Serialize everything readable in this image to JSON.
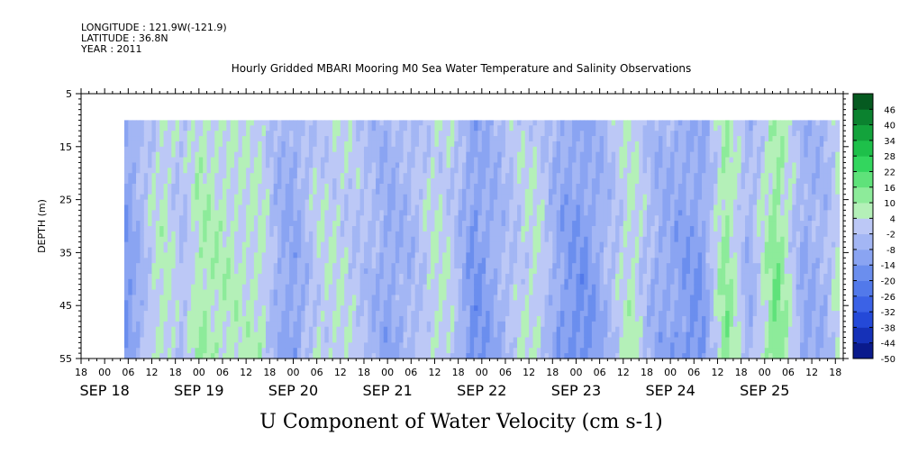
{
  "header": {
    "longitude": "LONGITUDE : 121.9W(-121.9)",
    "latitude": "LATITUDE : 36.8N",
    "year": "YEAR : 2011"
  },
  "chart_data": {
    "type": "heatmap",
    "title": "Hourly Gridded MBARI Mooring M0 Sea Water Temperature and Salinity Observations",
    "xlabel": "U Component of Water Velocity (cm s-1)",
    "ylabel": "DEPTH (m)",
    "x_time_range": [
      "2011-09-17T18:00",
      "2011-09-25T20:00"
    ],
    "data_time_range": [
      "2011-09-18T05:00",
      "2011-09-25T19:00"
    ],
    "hour_tick_labels": [
      "18",
      "00",
      "06",
      "12",
      "18",
      "00",
      "06",
      "12",
      "18",
      "00",
      "06",
      "12",
      "18",
      "00",
      "06",
      "12",
      "18",
      "00",
      "06",
      "12",
      "18",
      "00",
      "06",
      "12",
      "18",
      "00",
      "06",
      "12",
      "18",
      "00",
      "06",
      "12",
      "18"
    ],
    "day_labels": [
      "SEP 18",
      "SEP 19",
      "SEP 20",
      "SEP 21",
      "SEP 22",
      "SEP 23",
      "SEP 24",
      "SEP 25"
    ],
    "ylim": [
      5,
      55
    ],
    "y_inverted": true,
    "y_ticks": [
      5,
      15,
      25,
      35,
      45,
      55
    ],
    "data_depth_range": [
      10,
      55
    ],
    "colorbar": {
      "levels": [
        -50,
        -44,
        -38,
        -32,
        -26,
        -20,
        -14,
        -8,
        -2,
        4,
        10,
        16,
        22,
        28,
        34,
        40,
        46
      ],
      "tick_labels": [
        "-50",
        "-44",
        "-38",
        "-32",
        "-26",
        "-20",
        "-14",
        "-8",
        "-2",
        "4",
        "10",
        "16",
        "22",
        "28",
        "34",
        "40",
        "46"
      ],
      "colors": [
        "#0a1a8c",
        "#1531b8",
        "#2449d8",
        "#3b62e6",
        "#5279ea",
        "#6b8eee",
        "#8aa4f2",
        "#a3b6f4",
        "#bcc8f6",
        "#b4f0b8",
        "#8deb9a",
        "#5fe27a",
        "#33d65e",
        "#1ec04a",
        "#13a33c",
        "#0b822f",
        "#055a20"
      ]
    },
    "approx_hourly_mean_u_by_time": [
      {
        "t": "2011-09-18T06:00",
        "v": -12
      },
      {
        "t": "2011-09-18T12:00",
        "v": 2
      },
      {
        "t": "2011-09-18T15:00",
        "v": 6
      },
      {
        "t": "2011-09-18T20:00",
        "v": -2
      },
      {
        "t": "2011-09-19T00:00",
        "v": 8
      },
      {
        "t": "2011-09-19T06:00",
        "v": 6
      },
      {
        "t": "2011-09-19T12:00",
        "v": 4
      },
      {
        "t": "2011-09-19T16:00",
        "v": 5
      },
      {
        "t": "2011-09-19T20:00",
        "v": -6
      },
      {
        "t": "2011-09-20T00:00",
        "v": -10
      },
      {
        "t": "2011-09-20T06:00",
        "v": 2
      },
      {
        "t": "2011-09-20T12:00",
        "v": 3
      },
      {
        "t": "2011-09-20T18:00",
        "v": -2
      },
      {
        "t": "2011-09-21T00:00",
        "v": -8
      },
      {
        "t": "2011-09-21T06:00",
        "v": -4
      },
      {
        "t": "2011-09-21T12:00",
        "v": 4
      },
      {
        "t": "2011-09-21T16:00",
        "v": 2
      },
      {
        "t": "2011-09-21T22:00",
        "v": -14
      },
      {
        "t": "2011-09-22T04:00",
        "v": -6
      },
      {
        "t": "2011-09-22T10:00",
        "v": 2
      },
      {
        "t": "2011-09-22T14:00",
        "v": 4
      },
      {
        "t": "2011-09-22T20:00",
        "v": -10
      },
      {
        "t": "2011-09-23T02:00",
        "v": -14
      },
      {
        "t": "2011-09-23T08:00",
        "v": -4
      },
      {
        "t": "2011-09-23T14:00",
        "v": 6
      },
      {
        "t": "2011-09-23T20:00",
        "v": -6
      },
      {
        "t": "2011-09-24T02:00",
        "v": -10
      },
      {
        "t": "2011-09-24T08:00",
        "v": -12
      },
      {
        "t": "2011-09-24T14:00",
        "v": 12
      },
      {
        "t": "2011-09-24T20:00",
        "v": -6
      },
      {
        "t": "2011-09-25T03:00",
        "v": 14
      },
      {
        "t": "2011-09-25T10:00",
        "v": -8
      },
      {
        "t": "2011-09-25T16:00",
        "v": -4
      },
      {
        "t": "2011-09-25T19:00",
        "v": 6
      }
    ]
  }
}
